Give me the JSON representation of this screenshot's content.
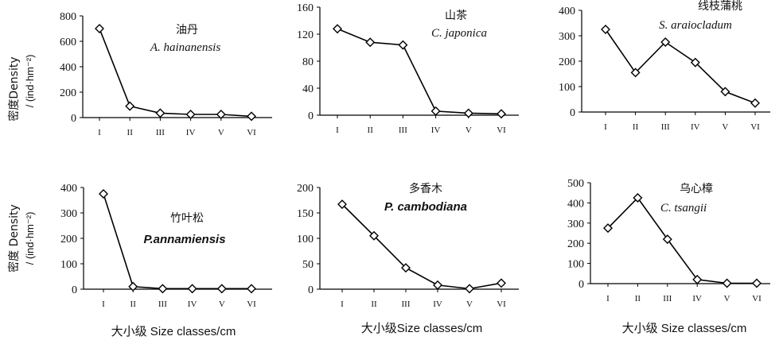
{
  "y_axis_label": {
    "line1": "密度Density",
    "line2": "/ (ind·hm⁻²)",
    "line1_row2": "密度 Density",
    "line2_row2": "/ (ind·hm⁻²)"
  },
  "x_axis_labels": [
    "大小级  Size classes/cm",
    "大小级Size classes/cm",
    "大小级  Size classes/cm"
  ],
  "chart_data": [
    {
      "type": "line",
      "title_cn": "油丹",
      "title_sci": "A. hainanensis",
      "sci_bold": false,
      "categories": [
        "I",
        "II",
        "III",
        "IV",
        "V",
        "VI"
      ],
      "values": [
        700,
        90,
        35,
        25,
        25,
        10
      ],
      "ylim": [
        0,
        800
      ],
      "yticks": [
        0,
        200,
        400,
        600,
        800
      ]
    },
    {
      "type": "line",
      "title_cn": "山茶",
      "title_sci": "C. japonica",
      "sci_bold": false,
      "categories": [
        "I",
        "II",
        "III",
        "IV",
        "V",
        "VI"
      ],
      "values": [
        128,
        108,
        104,
        6,
        3,
        2
      ],
      "ylim": [
        0,
        160
      ],
      "yticks": [
        0,
        40,
        80,
        120,
        160
      ]
    },
    {
      "type": "line",
      "title_cn": "线枝蒲桃",
      "title_sci": "S. araiocladum",
      "sci_bold": false,
      "categories": [
        "I",
        "II",
        "III",
        "IV",
        "V",
        "VI"
      ],
      "values": [
        325,
        155,
        275,
        195,
        80,
        35
      ],
      "ylim": [
        0,
        400
      ],
      "yticks": [
        0,
        100,
        200,
        300,
        400
      ]
    },
    {
      "type": "line",
      "title_cn": "竹叶松",
      "title_sci": "P.annamiensis",
      "sci_bold": true,
      "categories": [
        "I",
        "II",
        "III",
        "IV",
        "V",
        "VI"
      ],
      "values": [
        375,
        10,
        2,
        2,
        2,
        2
      ],
      "ylim": [
        0,
        400
      ],
      "yticks": [
        0,
        100,
        200,
        300,
        400
      ]
    },
    {
      "type": "line",
      "title_cn": "多香木",
      "title_sci": "P. cambodiana",
      "sci_bold": true,
      "categories": [
        "I",
        "II",
        "III",
        "IV",
        "V",
        "VI"
      ],
      "values": [
        167,
        105,
        42,
        8,
        1,
        12
      ],
      "ylim": [
        0,
        200
      ],
      "yticks": [
        0,
        50,
        100,
        150,
        200
      ]
    },
    {
      "type": "line",
      "title_cn": "乌心樟",
      "title_sci": "C. tsangii",
      "sci_bold": false,
      "categories": [
        "I",
        "II",
        "III",
        "IV",
        "V",
        "VI"
      ],
      "values": [
        275,
        425,
        220,
        20,
        2,
        2
      ],
      "ylim": [
        0,
        500
      ],
      "yticks": [
        0,
        100,
        200,
        300,
        400,
        500
      ]
    }
  ]
}
